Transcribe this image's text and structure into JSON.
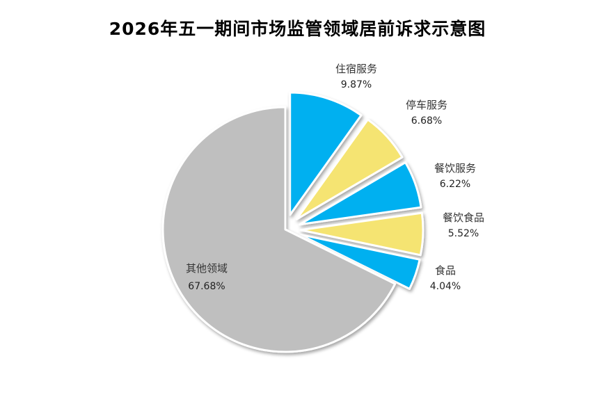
{
  "chart_data": {
    "type": "pie",
    "title": "2026年五一期间市场监管领域居前诉求示意图",
    "slices": [
      {
        "label": "住宿服务",
        "value": 9.87,
        "display": "9.87%",
        "color": "#00B0F0"
      },
      {
        "label": "停车服务",
        "value": 6.68,
        "display": "6.68%",
        "color": "#F5E472"
      },
      {
        "label": "餐饮服务",
        "value": 6.22,
        "display": "6.22%",
        "color": "#00B0F0"
      },
      {
        "label": "餐饮食品",
        "value": 5.52,
        "display": "5.52%",
        "color": "#F5E472"
      },
      {
        "label": "食品",
        "value": 4.04,
        "display": "4.04%",
        "color": "#00B0F0"
      },
      {
        "label": "其他领域",
        "value": 67.68,
        "display": "67.68%",
        "color": "#BFBFBF"
      }
    ],
    "slice_border_color": "#FFFFFF",
    "legend": "none",
    "exploded_slices": [
      "住宿服务",
      "停车服务",
      "餐饮服务",
      "餐饮食品",
      "食品"
    ]
  }
}
